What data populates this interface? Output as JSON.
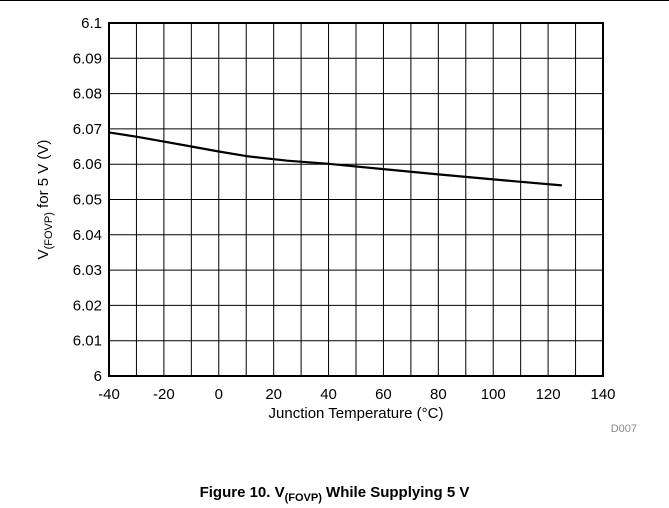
{
  "chart_data": {
    "type": "line",
    "title": "",
    "xlabel": "Junction Temperature (°C)",
    "ylabel": {
      "prefix": "V",
      "subscript": "(FOVP)",
      "suffix": " for 5 V (V)"
    },
    "xlim": [
      -40,
      140
    ],
    "ylim": [
      6.0,
      6.1
    ],
    "x_ticks": [
      "-40",
      "-20",
      "0",
      "20",
      "40",
      "60",
      "80",
      "100",
      "120",
      "140"
    ],
    "y_ticks": [
      "6",
      "6.01",
      "6.02",
      "6.03",
      "6.04",
      "6.05",
      "6.06",
      "6.07",
      "6.08",
      "6.09",
      "6.1"
    ],
    "x_minor_step": 10,
    "grid": true,
    "series": [
      {
        "x": [
          -40,
          -30,
          -20,
          -10,
          0,
          10,
          25,
          40,
          60,
          80,
          100,
          125
        ],
        "y": [
          6.069,
          6.0678,
          6.0664,
          6.065,
          6.0636,
          6.0623,
          6.061,
          6.0601,
          6.0586,
          6.0571,
          6.0557,
          6.054
        ]
      }
    ],
    "figure_code": "D007"
  },
  "caption": {
    "prefix": "Figure 10. V",
    "subscript": "(FOVP)",
    "suffix": " While Supplying 5 V"
  },
  "colors": {
    "line": "#000000",
    "grid": "#000000",
    "code": "#8a8a8a"
  }
}
